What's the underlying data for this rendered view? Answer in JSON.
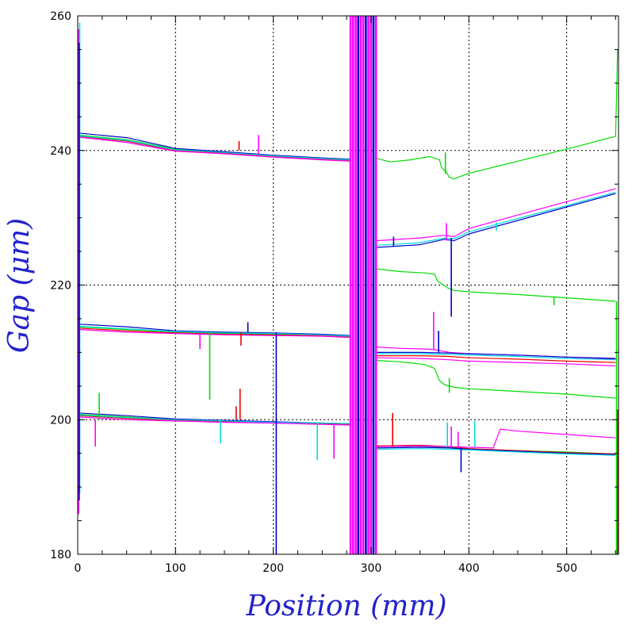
{
  "chart_data": {
    "type": "line",
    "xlabel": "Position (mm)",
    "ylabel": "Gap (μm)",
    "xlim": [
      0,
      553
    ],
    "ylim": [
      180,
      260
    ],
    "x_ticks": [
      0,
      100,
      200,
      300,
      400,
      500
    ],
    "x_tick_labels": [
      "0",
      "100",
      "200",
      "300",
      "400",
      "500"
    ],
    "y_ticks": [
      180,
      200,
      220,
      240,
      260
    ],
    "y_tick_labels": [
      "180",
      "200",
      "220",
      "240",
      "260"
    ],
    "grid": true,
    "legend": "none",
    "gap_band": [
      279,
      305
    ],
    "colors": {
      "blue": "#0000cc",
      "cyan": "#00dddd",
      "magenta": "#ff00ff",
      "green": "#00dd00",
      "red": "#ee0000",
      "grid": "#000000",
      "axis_title": "#2222cc"
    },
    "series": [
      {
        "color": "#00dd00",
        "x": [
          0,
          50,
          100,
          150,
          200,
          250,
          279
        ],
        "y": [
          242.3,
          241.6,
          240.2,
          239.7,
          239.2,
          238.8,
          238.6
        ]
      },
      {
        "color": "#ee0000",
        "x": [
          0,
          50,
          100,
          150,
          200,
          250,
          279
        ],
        "y": [
          242.1,
          241.4,
          240.0,
          239.6,
          239.1,
          238.7,
          238.5
        ]
      },
      {
        "color": "#0000cc",
        "x": [
          0,
          50,
          100,
          150,
          200,
          250,
          279
        ],
        "y": [
          242.6,
          241.9,
          240.3,
          239.8,
          239.3,
          238.9,
          238.7
        ]
      },
      {
        "color": "#00dddd",
        "x": [
          0,
          50,
          100,
          150,
          200,
          250,
          279
        ],
        "y": [
          242.2,
          241.5,
          240.1,
          239.7,
          239.2,
          238.8,
          238.6
        ]
      },
      {
        "color": "#ff00ff",
        "x": [
          0,
          50,
          100,
          150,
          200,
          250,
          279
        ],
        "y": [
          242.0,
          241.2,
          239.9,
          239.5,
          239.0,
          238.6,
          238.4
        ]
      },
      {
        "color": "#00dd00",
        "x": [
          0,
          50,
          100,
          150,
          200,
          250,
          279
        ],
        "y": [
          213.8,
          213.4,
          213.0,
          212.8,
          212.7,
          212.6,
          212.4
        ]
      },
      {
        "color": "#ee0000",
        "x": [
          0,
          50,
          100,
          150,
          200,
          250,
          279
        ],
        "y": [
          213.6,
          213.2,
          212.9,
          212.7,
          212.6,
          212.5,
          212.3
        ]
      },
      {
        "color": "#0000cc",
        "x": [
          0,
          50,
          100,
          150,
          200,
          250,
          279
        ],
        "y": [
          214.2,
          213.8,
          213.2,
          213.0,
          212.9,
          212.7,
          212.5
        ]
      },
      {
        "color": "#00dddd",
        "x": [
          0,
          50,
          100,
          150,
          200,
          250,
          279
        ],
        "y": [
          213.9,
          213.5,
          213.1,
          212.9,
          212.8,
          212.6,
          212.4
        ]
      },
      {
        "color": "#ff00ff",
        "x": [
          0,
          50,
          100,
          150,
          200,
          250,
          279
        ],
        "y": [
          213.4,
          213.0,
          212.8,
          212.6,
          212.5,
          212.4,
          212.2
        ]
      },
      {
        "color": "#00dd00",
        "x": [
          0,
          50,
          100,
          150,
          200,
          250,
          279
        ],
        "y": [
          200.8,
          200.4,
          200.0,
          199.8,
          199.6,
          199.5,
          199.4
        ]
      },
      {
        "color": "#ee0000",
        "x": [
          0,
          50,
          100,
          150,
          200,
          250,
          279
        ],
        "y": [
          200.6,
          200.2,
          199.9,
          199.7,
          199.5,
          199.4,
          199.3
        ]
      },
      {
        "color": "#0000cc",
        "x": [
          0,
          50,
          100,
          150,
          200,
          250,
          279
        ],
        "y": [
          201.0,
          200.6,
          200.1,
          199.9,
          199.7,
          199.5,
          199.4
        ]
      },
      {
        "color": "#00dddd",
        "x": [
          0,
          50,
          100,
          150,
          200,
          250,
          279
        ],
        "y": [
          200.7,
          200.3,
          200.0,
          199.8,
          199.6,
          199.5,
          199.4
        ]
      },
      {
        "color": "#ff00ff",
        "x": [
          0,
          50,
          100,
          150,
          200,
          250,
          279
        ],
        "y": [
          200.4,
          200.0,
          199.8,
          199.6,
          199.5,
          199.3,
          199.2
        ]
      },
      {
        "color": "#00dd00",
        "x": [
          306,
          320,
          340,
          360,
          370,
          372,
          374,
          377,
          380,
          385,
          400,
          450,
          500,
          550,
          551,
          552
        ],
        "y": [
          238.8,
          238.3,
          238.6,
          239.1,
          238.6,
          237.5,
          237.2,
          236.8,
          236.0,
          235.8,
          236.6,
          238.4,
          240.2,
          242.1,
          248.0,
          255.0
        ]
      },
      {
        "color": "#0000cc",
        "x": [
          306,
          350,
          375,
          385,
          400,
          450,
          500,
          550
        ],
        "y": [
          225.6,
          226.0,
          226.8,
          226.6,
          227.6,
          229.6,
          231.6,
          233.6
        ]
      },
      {
        "color": "#00dddd",
        "x": [
          306,
          350,
          375,
          385,
          400,
          450,
          500,
          550
        ],
        "y": [
          225.9,
          226.3,
          227.0,
          226.9,
          227.9,
          229.9,
          231.8,
          233.8
        ]
      },
      {
        "color": "#ff00ff",
        "x": [
          306,
          350,
          375,
          385,
          400,
          450,
          500,
          550
        ],
        "y": [
          226.6,
          227.0,
          227.4,
          227.2,
          228.4,
          230.4,
          232.4,
          234.3
        ]
      },
      {
        "color": "#00dd00",
        "x": [
          306,
          330,
          355,
          365,
          368,
          372,
          378,
          385,
          400,
          450,
          500,
          550
        ],
        "y": [
          222.4,
          222.0,
          221.8,
          221.6,
          220.6,
          220.2,
          219.6,
          219.2,
          219.0,
          218.6,
          218.1,
          217.6
        ]
      },
      {
        "color": "#ff00ff",
        "x": [
          306,
          330,
          355,
          365,
          380,
          400,
          450,
          500,
          550
        ],
        "y": [
          210.8,
          210.6,
          210.5,
          210.4,
          210.0,
          209.8,
          209.6,
          209.3,
          209.0
        ]
      },
      {
        "color": "#0000cc",
        "x": [
          306,
          350,
          380,
          400,
          450,
          500,
          550
        ],
        "y": [
          210.0,
          210.0,
          209.9,
          209.8,
          209.6,
          209.3,
          209.1
        ]
      },
      {
        "color": "#00dddd",
        "x": [
          306,
          350,
          380,
          400,
          450,
          500,
          550
        ],
        "y": [
          209.8,
          209.8,
          209.7,
          209.6,
          209.4,
          209.1,
          208.9
        ]
      },
      {
        "color": "#ee0000",
        "x": [
          306,
          350,
          380,
          400,
          450,
          500,
          550
        ],
        "y": [
          209.5,
          209.5,
          209.4,
          209.2,
          209.0,
          208.7,
          208.5
        ]
      },
      {
        "color": "#ff00ff",
        "x": [
          306,
          350,
          380,
          400,
          450,
          500,
          550
        ],
        "y": [
          209.2,
          209.1,
          208.9,
          208.7,
          208.5,
          208.3,
          208.0
        ]
      },
      {
        "color": "#00dd00",
        "x": [
          306,
          330,
          355,
          365,
          370,
          375,
          385,
          400,
          450,
          500,
          550
        ],
        "y": [
          208.8,
          208.6,
          208.2,
          207.6,
          205.8,
          205.2,
          204.8,
          204.6,
          204.2,
          203.8,
          203.2
        ]
      },
      {
        "color": "#00dd00",
        "x": [
          306,
          350,
          380,
          400,
          450,
          500,
          550
        ],
        "y": [
          196.0,
          196.1,
          195.9,
          195.6,
          195.4,
          195.2,
          194.9
        ]
      },
      {
        "color": "#ee0000",
        "x": [
          306,
          350,
          380,
          400,
          450,
          500,
          550
        ],
        "y": [
          196.1,
          196.2,
          196.0,
          195.7,
          195.4,
          195.1,
          194.9
        ]
      },
      {
        "color": "#0000cc",
        "x": [
          306,
          350,
          380,
          400,
          450,
          500,
          550
        ],
        "y": [
          195.8,
          195.9,
          195.8,
          195.6,
          195.3,
          195.0,
          194.8
        ]
      },
      {
        "color": "#00dddd",
        "x": [
          306,
          350,
          380,
          400,
          450,
          500,
          550
        ],
        "y": [
          195.6,
          195.7,
          195.6,
          195.5,
          195.2,
          194.9,
          194.7
        ]
      },
      {
        "color": "#ff00ff",
        "x": [
          306,
          350,
          380,
          425,
          432,
          450,
          500,
          550
        ],
        "y": [
          196.0,
          196.1,
          196.0,
          195.8,
          198.6,
          198.3,
          197.8,
          197.3
        ]
      }
    ],
    "spikes": [
      {
        "color": "#ff00ff",
        "x": 1,
        "y1": 186,
        "y2": 258
      },
      {
        "color": "#00dddd",
        "x": 2,
        "y1": 189,
        "y2": 259
      },
      {
        "color": "#0000cc",
        "x": 1.5,
        "y1": 188,
        "y2": 256
      },
      {
        "color": "#00dd00",
        "x": 22,
        "y1": 200,
        "y2": 204
      },
      {
        "color": "#ff00ff",
        "x": 18,
        "y1": 196,
        "y2": 200
      },
      {
        "color": "#ee0000",
        "x": 165,
        "y1": 240,
        "y2": 241.4
      },
      {
        "color": "#ff00ff",
        "x": 185,
        "y1": 239.4,
        "y2": 242.3
      },
      {
        "color": "#00dd00",
        "x": 135,
        "y1": 203,
        "y2": 213
      },
      {
        "color": "#ff00ff",
        "x": 125,
        "y1": 210.5,
        "y2": 213
      },
      {
        "color": "#ee0000",
        "x": 167,
        "y1": 211,
        "y2": 213
      },
      {
        "color": "#0000cc",
        "x": 174,
        "y1": 213,
        "y2": 214.5
      },
      {
        "color": "#ee0000",
        "x": 166,
        "y1": 200,
        "y2": 204.6
      },
      {
        "color": "#ee0000",
        "x": 162,
        "y1": 200,
        "y2": 202
      },
      {
        "color": "#00dddd",
        "x": 146,
        "y1": 196.5,
        "y2": 200
      },
      {
        "color": "#0000cc",
        "x": 203,
        "y1": 180,
        "y2": 213
      },
      {
        "color": "#00dddd",
        "x": 245,
        "y1": 194,
        "y2": 199.5
      },
      {
        "color": "#ff00ff",
        "x": 262,
        "y1": 194.2,
        "y2": 199.4
      },
      {
        "color": "#ee0000",
        "x": 322,
        "y1": 196,
        "y2": 201
      },
      {
        "color": "#0000cc",
        "x": 323,
        "y1": 225.7,
        "y2": 227.2
      },
      {
        "color": "#ff00ff",
        "x": 377,
        "y1": 226.6,
        "y2": 229.2
      },
      {
        "color": "#ff00ff",
        "x": 364,
        "y1": 210.4,
        "y2": 216
      },
      {
        "color": "#0000cc",
        "x": 382,
        "y1": 215.3,
        "y2": 227
      },
      {
        "color": "#0000cc",
        "x": 369,
        "y1": 209.9,
        "y2": 213.2
      },
      {
        "color": "#00dd00",
        "x": 376,
        "y1": 236.5,
        "y2": 239.7
      },
      {
        "color": "#00dd00",
        "x": 380,
        "y1": 204,
        "y2": 206.2
      },
      {
        "color": "#ff00ff",
        "x": 382,
        "y1": 195.9,
        "y2": 199
      },
      {
        "color": "#00dddd",
        "x": 378,
        "y1": 196,
        "y2": 199.6
      },
      {
        "color": "#0000cc",
        "x": 392,
        "y1": 192.2,
        "y2": 195.8
      },
      {
        "color": "#ff00ff",
        "x": 389,
        "y1": 196,
        "y2": 198.2
      },
      {
        "color": "#00dddd",
        "x": 406,
        "y1": 196,
        "y2": 199.8
      },
      {
        "color": "#00dddd",
        "x": 428,
        "y1": 228.1,
        "y2": 229.3
      },
      {
        "color": "#00dd00",
        "x": 487,
        "y1": 217,
        "y2": 218.3
      },
      {
        "color": "#ee0000",
        "x": 552,
        "y1": 180,
        "y2": 201.5
      },
      {
        "color": "#00dd00",
        "x": 551,
        "y1": 180,
        "y2": 217.6
      }
    ]
  }
}
